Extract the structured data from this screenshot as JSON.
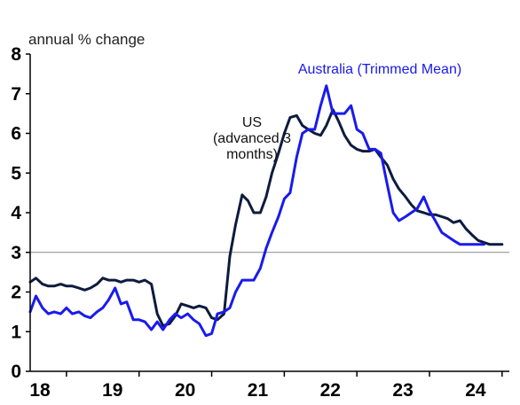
{
  "chart_data": {
    "type": "line",
    "unit_label": "annual % change",
    "ylim": [
      0,
      8
    ],
    "y_ticks": [
      0,
      1,
      2,
      3,
      4,
      5,
      6,
      7,
      8
    ],
    "x_tick_labels": [
      "18",
      "19",
      "20",
      "21",
      "22",
      "23",
      "24"
    ],
    "xlim": [
      2018.0,
      2024.6
    ],
    "reference_line": 3,
    "grid": false,
    "series": [
      {
        "name": "US (advanced 3 months)",
        "label_lines": [
          "US",
          "(advanced 3",
          "months)"
        ],
        "color": "#0d1b3e",
        "x": [
          2018.0,
          2018.08,
          2018.17,
          2018.25,
          2018.33,
          2018.42,
          2018.5,
          2018.58,
          2018.67,
          2018.75,
          2018.83,
          2018.92,
          2019.0,
          2019.08,
          2019.17,
          2019.25,
          2019.33,
          2019.42,
          2019.5,
          2019.58,
          2019.67,
          2019.75,
          2019.83,
          2019.92,
          2020.0,
          2020.08,
          2020.17,
          2020.25,
          2020.33,
          2020.42,
          2020.5,
          2020.58,
          2020.67,
          2020.75,
          2020.83,
          2020.92,
          2021.0,
          2021.08,
          2021.17,
          2021.25,
          2021.33,
          2021.42,
          2021.5,
          2021.58,
          2021.67,
          2021.75,
          2021.83,
          2021.92,
          2022.0,
          2022.08,
          2022.17,
          2022.25,
          2022.33,
          2022.42,
          2022.5,
          2022.58,
          2022.67,
          2022.75,
          2022.83,
          2022.92,
          2023.0,
          2023.08,
          2023.17,
          2023.25,
          2023.33,
          2023.42,
          2023.5,
          2023.58,
          2023.67,
          2023.75,
          2023.83,
          2023.92,
          2024.0,
          2024.08,
          2024.17,
          2024.25,
          2024.33,
          2024.42,
          2024.5
        ],
        "values": [
          2.25,
          2.35,
          2.2,
          2.15,
          2.15,
          2.2,
          2.15,
          2.15,
          2.1,
          2.05,
          2.1,
          2.2,
          2.35,
          2.3,
          2.3,
          2.25,
          2.3,
          2.3,
          2.25,
          2.3,
          2.2,
          1.45,
          1.15,
          1.2,
          1.4,
          1.7,
          1.65,
          1.6,
          1.65,
          1.6,
          1.35,
          1.3,
          1.45,
          2.9,
          3.7,
          4.45,
          4.3,
          4.0,
          4.0,
          4.4,
          5.0,
          5.5,
          6.0,
          6.4,
          6.45,
          6.2,
          6.1,
          6.0,
          5.95,
          6.2,
          6.6,
          6.3,
          5.95,
          5.7,
          5.6,
          5.55,
          5.55,
          5.6,
          5.4,
          5.2,
          4.85,
          4.6,
          4.4,
          4.2,
          4.05,
          4.0,
          3.95,
          3.95,
          3.9,
          3.85,
          3.75,
          3.8,
          3.6,
          3.45,
          3.3,
          3.25,
          3.2,
          3.2,
          3.2
        ]
      },
      {
        "name": "Australia (Trimmed Mean)",
        "label_lines": [
          "Australia (Trimmed Mean)"
        ],
        "color": "#1a1aee",
        "x": [
          2018.0,
          2018.08,
          2018.17,
          2018.25,
          2018.33,
          2018.42,
          2018.5,
          2018.58,
          2018.67,
          2018.75,
          2018.83,
          2018.92,
          2019.0,
          2019.08,
          2019.17,
          2019.25,
          2019.33,
          2019.42,
          2019.5,
          2019.58,
          2019.67,
          2019.75,
          2019.83,
          2019.92,
          2020.0,
          2020.08,
          2020.17,
          2020.25,
          2020.33,
          2020.42,
          2020.5,
          2020.58,
          2020.67,
          2020.75,
          2020.83,
          2020.92,
          2021.0,
          2021.08,
          2021.17,
          2021.25,
          2021.33,
          2021.42,
          2021.5,
          2021.58,
          2021.67,
          2021.75,
          2021.83,
          2021.92,
          2022.0,
          2022.08,
          2022.17,
          2022.25,
          2022.33,
          2022.42,
          2022.5,
          2022.58,
          2022.67,
          2022.75,
          2022.83,
          2022.92,
          2023.0,
          2023.08,
          2023.17,
          2023.25,
          2023.33,
          2023.42,
          2023.5,
          2023.58,
          2023.67,
          2023.75,
          2023.83,
          2023.92,
          2024.0,
          2024.08,
          2024.17,
          2024.25
        ],
        "values": [
          1.5,
          1.9,
          1.6,
          1.45,
          1.5,
          1.45,
          1.6,
          1.45,
          1.5,
          1.4,
          1.35,
          1.5,
          1.6,
          1.8,
          2.1,
          1.7,
          1.75,
          1.3,
          1.3,
          1.25,
          1.05,
          1.25,
          1.05,
          1.3,
          1.45,
          1.35,
          1.45,
          1.3,
          1.2,
          0.9,
          0.95,
          1.45,
          1.5,
          1.6,
          2.0,
          2.3,
          2.3,
          2.3,
          2.6,
          3.1,
          3.5,
          3.9,
          4.35,
          4.5,
          5.4,
          6.0,
          6.1,
          6.1,
          6.7,
          7.2,
          6.5,
          6.5,
          6.5,
          6.7,
          6.1,
          6.0,
          5.6,
          5.6,
          5.5,
          4.7,
          4.0,
          3.8,
          3.9,
          4.0,
          4.1,
          4.4,
          4.05,
          3.8,
          3.5,
          3.4,
          3.3,
          3.2,
          3.2,
          3.2,
          3.2,
          3.2
        ]
      }
    ]
  }
}
